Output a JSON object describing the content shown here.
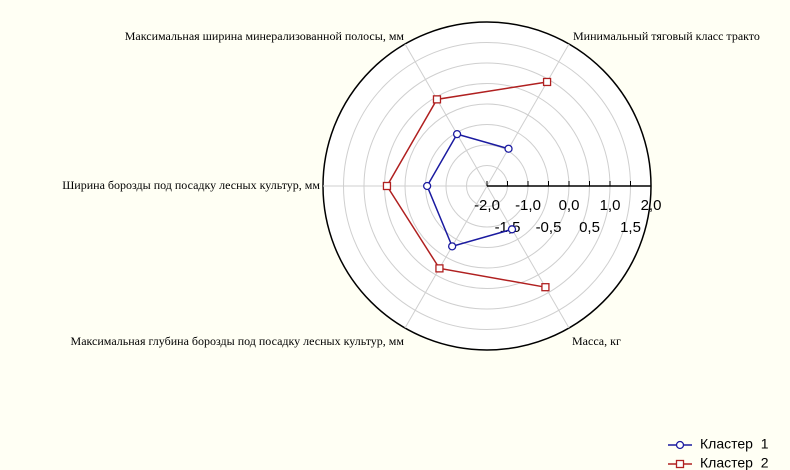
{
  "chart_data": {
    "type": "radar",
    "categories": [
      "Минимальный тяговый класс тракто",
      "Максимальная ширина минерализованной полосы, мм",
      "Ширина борозды под посадку лесных культур, мм",
      "Максимальная глубина борозды под посадку лесных культур, мм",
      "Масса, кг"
    ],
    "series": [
      {
        "name": "Кластер  1",
        "color": "#1a1aa0",
        "marker": "circle",
        "values": [
          -0.95,
          -0.54,
          -0.54,
          -0.3,
          -0.78
        ]
      },
      {
        "name": "Кластер  2",
        "color": "#b02020",
        "marker": "square",
        "values": [
          0.93,
          0.44,
          0.44,
          0.32,
          0.85
        ]
      }
    ],
    "rlim": [
      -2,
      2
    ],
    "rticks": [
      {
        "value": -2,
        "label": "-2,0"
      },
      {
        "value": -1.5,
        "label": "-1,5"
      },
      {
        "value": -1,
        "label": "-1,0"
      },
      {
        "value": -0.5,
        "label": "-0,5"
      },
      {
        "value": 0,
        "label": "0,0"
      },
      {
        "value": 0.5,
        "label": "0,5"
      },
      {
        "value": 1,
        "label": "1,0"
      },
      {
        "value": 1.5,
        "label": "1,5"
      },
      {
        "value": 2,
        "label": "2,0"
      }
    ],
    "grid": true,
    "legend": "lower right"
  }
}
